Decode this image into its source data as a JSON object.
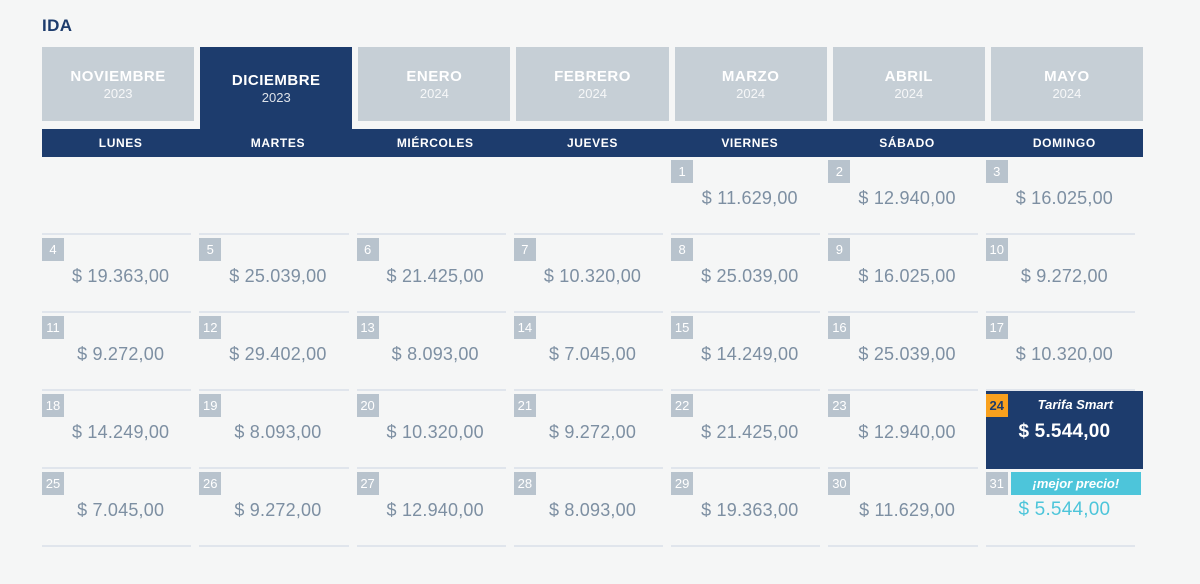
{
  "title": "IDA",
  "colors": {
    "navy": "#1d3c6d",
    "tab_inactive": "#c6cfd6",
    "badge_gray": "#b8c3cd",
    "price_text": "#7d8fa2",
    "selected_badge_orange": "#f9a11e",
    "best_price_cyan": "#4dc5da",
    "row_border": "#e0e5ec",
    "page_background": "#f5f6f6"
  },
  "months": [
    {
      "name": "NOVIEMBRE",
      "year": "2023",
      "active": false
    },
    {
      "name": "DICIEMBRE",
      "year": "2023",
      "active": true
    },
    {
      "name": "ENERO",
      "year": "2024",
      "active": false
    },
    {
      "name": "FEBRERO",
      "year": "2024",
      "active": false
    },
    {
      "name": "MARZO",
      "year": "2024",
      "active": false
    },
    {
      "name": "ABRIL",
      "year": "2024",
      "active": false
    },
    {
      "name": "MAYO",
      "year": "2024",
      "active": false
    }
  ],
  "weekdays": [
    "LUNES",
    "MARTES",
    "MIÉRCOLES",
    "JUEVES",
    "VIERNES",
    "SÁBADO",
    "DOMINGO"
  ],
  "labels": {
    "smart_fare": "Tarifa Smart",
    "best_price": "¡mejor precio!"
  },
  "calendar": {
    "rows": [
      [
        {
          "type": "empty"
        },
        {
          "type": "empty"
        },
        {
          "type": "empty"
        },
        {
          "type": "empty"
        },
        {
          "type": "normal",
          "day": "1",
          "price": "$ 11.629,00"
        },
        {
          "type": "normal",
          "day": "2",
          "price": "$ 12.940,00"
        },
        {
          "type": "normal",
          "day": "3",
          "price": "$ 16.025,00"
        }
      ],
      [
        {
          "type": "normal",
          "day": "4",
          "price": "$ 19.363,00"
        },
        {
          "type": "normal",
          "day": "5",
          "price": "$ 25.039,00"
        },
        {
          "type": "normal",
          "day": "6",
          "price": "$ 21.425,00"
        },
        {
          "type": "normal",
          "day": "7",
          "price": "$ 10.320,00"
        },
        {
          "type": "normal",
          "day": "8",
          "price": "$ 25.039,00"
        },
        {
          "type": "normal",
          "day": "9",
          "price": "$ 16.025,00"
        },
        {
          "type": "normal",
          "day": "10",
          "price": "$ 9.272,00"
        }
      ],
      [
        {
          "type": "normal",
          "day": "11",
          "price": "$ 9.272,00"
        },
        {
          "type": "normal",
          "day": "12",
          "price": "$ 29.402,00"
        },
        {
          "type": "normal",
          "day": "13",
          "price": "$ 8.093,00"
        },
        {
          "type": "normal",
          "day": "14",
          "price": "$ 7.045,00"
        },
        {
          "type": "normal",
          "day": "15",
          "price": "$ 14.249,00"
        },
        {
          "type": "normal",
          "day": "16",
          "price": "$ 25.039,00"
        },
        {
          "type": "normal",
          "day": "17",
          "price": "$ 10.320,00"
        }
      ],
      [
        {
          "type": "normal",
          "day": "18",
          "price": "$ 14.249,00"
        },
        {
          "type": "normal",
          "day": "19",
          "price": "$ 8.093,00"
        },
        {
          "type": "normal",
          "day": "20",
          "price": "$ 10.320,00"
        },
        {
          "type": "normal",
          "day": "21",
          "price": "$ 9.272,00"
        },
        {
          "type": "normal",
          "day": "22",
          "price": "$ 21.425,00"
        },
        {
          "type": "normal",
          "day": "23",
          "price": "$ 12.940,00"
        },
        {
          "type": "selected",
          "day": "24",
          "price": "$ 5.544,00"
        }
      ],
      [
        {
          "type": "normal",
          "day": "25",
          "price": "$ 7.045,00"
        },
        {
          "type": "normal",
          "day": "26",
          "price": "$ 9.272,00"
        },
        {
          "type": "normal",
          "day": "27",
          "price": "$ 12.940,00"
        },
        {
          "type": "normal",
          "day": "28",
          "price": "$ 8.093,00"
        },
        {
          "type": "normal",
          "day": "29",
          "price": "$ 19.363,00"
        },
        {
          "type": "normal",
          "day": "30",
          "price": "$ 11.629,00"
        },
        {
          "type": "best",
          "day": "31",
          "price": "$ 5.544,00"
        }
      ]
    ]
  }
}
